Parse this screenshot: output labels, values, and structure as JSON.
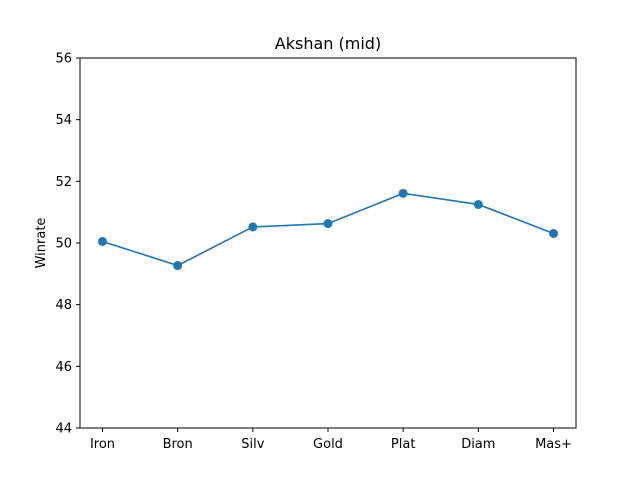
{
  "chart_data": {
    "type": "line",
    "title": "Akshan (mid)",
    "xlabel": "",
    "ylabel": "Winrate",
    "categories": [
      "Iron",
      "Bron",
      "Silv",
      "Gold",
      "Plat",
      "Diam",
      "Mas+"
    ],
    "series": [
      {
        "values": [
          50.05,
          49.27,
          50.52,
          50.63,
          51.61,
          51.25,
          50.31
        ],
        "color": "#1f77b4"
      }
    ],
    "ylim": [
      44,
      56
    ],
    "yticks": [
      44,
      46,
      48,
      50,
      52,
      54,
      56
    ],
    "grid": false,
    "legend": "none"
  }
}
